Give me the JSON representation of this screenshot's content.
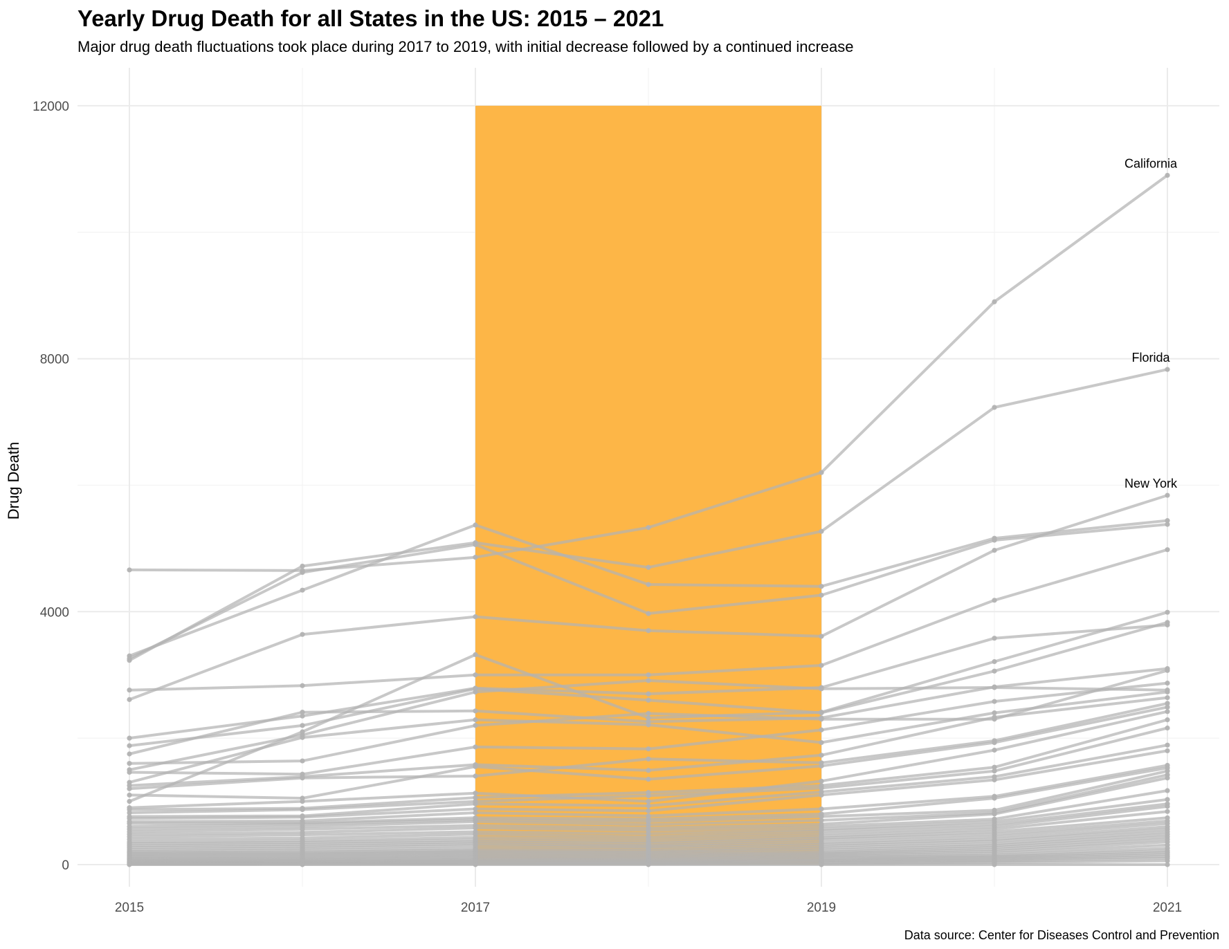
{
  "chart_data": {
    "type": "line",
    "title": "Yearly Drug Death for all States in the US: 2015 – 2021",
    "subtitle": "Major drug death fluctuations took place during 2017 to 2019, with initial decrease followed by a continued increase",
    "ylabel": "Drug Death",
    "xlabel": "",
    "caption": "Data source: Center for Diseases Control and Prevention",
    "x": [
      2015,
      2016,
      2017,
      2018,
      2019,
      2020,
      2021
    ],
    "x_ticks": [
      "2015",
      "2017",
      "2019",
      "2021"
    ],
    "y_ticks": [
      "0",
      "4000",
      "8000",
      "12000"
    ],
    "xlim": [
      2014.7,
      2021.3
    ],
    "ylim": [
      -350,
      12600
    ],
    "highlight_band": {
      "x_start": 2017,
      "x_end": 2019,
      "y_start": 0,
      "y_end": 12000,
      "color": "#fdb647"
    },
    "line_color": "#b3b3b3",
    "grid": true,
    "legend": "none",
    "labeled_series": [
      {
        "name": "California",
        "values": [
          4660,
          4650,
          4860,
          5330,
          6200,
          8900,
          10900
        ]
      },
      {
        "name": "Florida",
        "values": [
          3230,
          4720,
          5090,
          4700,
          5270,
          7230,
          7830
        ]
      },
      {
        "name": "New York",
        "values": [
          2610,
          3640,
          3920,
          3700,
          3610,
          4970,
          5840
        ]
      }
    ],
    "series": [
      {
        "values": [
          3300,
          4340,
          5370,
          4430,
          4400,
          5160,
          5440
        ]
      },
      {
        "values": [
          3260,
          4620,
          5060,
          3970,
          4260,
          5130,
          5380
        ]
      },
      {
        "values": [
          2760,
          2830,
          3000,
          3000,
          3150,
          4180,
          4980
        ]
      },
      {
        "values": [
          2000,
          2350,
          2790,
          2700,
          2800,
          3580,
          3790
        ]
      },
      {
        "values": [
          1500,
          2050,
          2730,
          2910,
          2780,
          2800,
          2760
        ]
      },
      {
        "values": [
          1000,
          2100,
          3320,
          2320,
          2410,
          3210,
          3990
        ]
      },
      {
        "values": [
          1880,
          2200,
          2780,
          2600,
          2400,
          3060,
          3830
        ]
      },
      {
        "values": [
          1750,
          2410,
          2430,
          2260,
          2320,
          2810,
          3100
        ]
      },
      {
        "values": [
          1600,
          1640,
          2200,
          2390,
          2300,
          2300,
          3070
        ]
      },
      {
        "values": [
          1460,
          1430,
          1860,
          1830,
          2130,
          2580,
          2870
        ]
      },
      {
        "values": [
          1300,
          2010,
          2290,
          2210,
          1930,
          2400,
          2730
        ]
      },
      {
        "values": [
          1250,
          1390,
          1580,
          1490,
          1730,
          2330,
          2640
        ]
      },
      {
        "values": [
          1200,
          1370,
          1400,
          1670,
          1610,
          1960,
          2550
        ]
      },
      {
        "values": [
          1100,
          1050,
          1550,
          1350,
          1560,
          1930,
          2490
        ]
      },
      {
        "values": [
          900,
          1000,
          1130,
          1000,
          1320,
          1810,
          2420
        ]
      },
      {
        "values": [
          870,
          890,
          1060,
          1140,
          1250,
          1540,
          2290
        ]
      },
      {
        "values": [
          820,
          870,
          1000,
          1090,
          1210,
          1480,
          2160
        ]
      },
      {
        "values": [
          760,
          770,
          960,
          930,
          1150,
          1390,
          1890
        ]
      },
      {
        "values": [
          730,
          750,
          880,
          850,
          1100,
          1340,
          1800
        ]
      },
      {
        "values": [
          680,
          690,
          820,
          770,
          880,
          1080,
          1570
        ]
      },
      {
        "values": [
          650,
          660,
          740,
          720,
          800,
          1050,
          1530
        ]
      },
      {
        "values": [
          600,
          640,
          710,
          680,
          760,
          860,
          1480
        ]
      },
      {
        "values": [
          560,
          600,
          680,
          630,
          700,
          820,
          1420
        ]
      },
      {
        "values": [
          520,
          560,
          620,
          580,
          640,
          800,
          1370
        ]
      },
      {
        "values": [
          480,
          510,
          580,
          540,
          600,
          720,
          1170
        ]
      },
      {
        "values": [
          440,
          470,
          520,
          490,
          560,
          680,
          1030
        ]
      },
      {
        "values": [
          400,
          420,
          480,
          440,
          530,
          640,
          960
        ]
      },
      {
        "values": [
          360,
          380,
          430,
          400,
          490,
          600,
          920
        ]
      },
      {
        "values": [
          330,
          350,
          390,
          360,
          450,
          560,
          840
        ]
      },
      {
        "values": [
          300,
          320,
          360,
          330,
          420,
          520,
          740
        ]
      },
      {
        "values": [
          270,
          290,
          330,
          300,
          390,
          480,
          690
        ]
      },
      {
        "values": [
          240,
          260,
          300,
          280,
          350,
          440,
          650
        ]
      },
      {
        "values": [
          210,
          230,
          260,
          250,
          320,
          400,
          600
        ]
      },
      {
        "values": [
          190,
          200,
          230,
          220,
          290,
          370,
          560
        ]
      },
      {
        "values": [
          170,
          180,
          210,
          200,
          260,
          330,
          520
        ]
      },
      {
        "values": [
          150,
          160,
          190,
          180,
          230,
          300,
          480
        ]
      },
      {
        "values": [
          130,
          140,
          170,
          160,
          200,
          270,
          440
        ]
      },
      {
        "values": [
          110,
          120,
          150,
          140,
          180,
          240,
          400
        ]
      },
      {
        "values": [
          95,
          100,
          130,
          120,
          160,
          210,
          360
        ]
      },
      {
        "values": [
          80,
          85,
          110,
          100,
          140,
          180,
          310
        ]
      },
      {
        "values": [
          65,
          70,
          90,
          85,
          120,
          150,
          260
        ]
      },
      {
        "values": [
          50,
          55,
          75,
          70,
          100,
          130,
          220
        ]
      },
      {
        "values": [
          40,
          45,
          60,
          55,
          80,
          110,
          190
        ]
      },
      {
        "values": [
          30,
          35,
          50,
          45,
          65,
          90,
          160
        ]
      },
      {
        "values": [
          20,
          25,
          35,
          30,
          50,
          70,
          130
        ]
      },
      {
        "values": [
          10,
          15,
          20,
          20,
          30,
          50,
          100
        ]
      },
      {
        "values": [
          5,
          5,
          10,
          10,
          15,
          30,
          60
        ]
      },
      {
        "values": [
          0,
          0,
          0,
          0,
          0,
          0,
          0
        ]
      }
    ]
  }
}
